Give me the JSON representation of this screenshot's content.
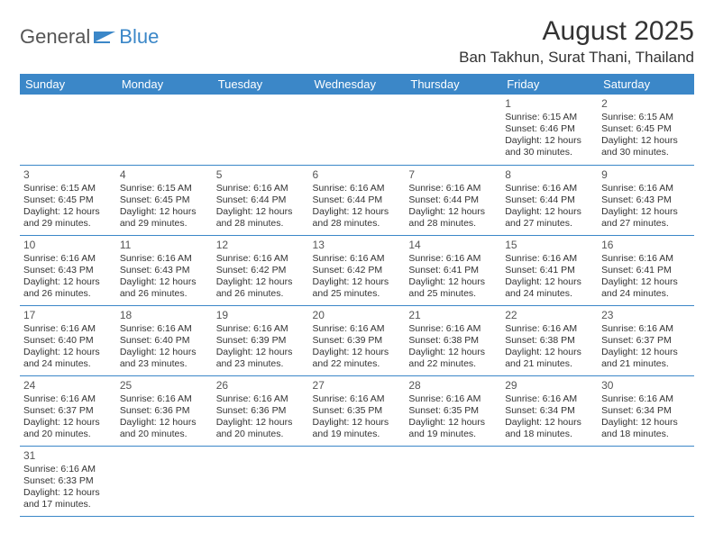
{
  "brand": {
    "part1": "General",
    "part2": "Blue"
  },
  "title": "August 2025",
  "location": "Ban Takhun, Surat Thani, Thailand",
  "colors": {
    "header_bg": "#3b87c8",
    "header_fg": "#ffffff",
    "border": "#3b87c8",
    "text": "#333333",
    "background": "#ffffff"
  },
  "weekdays": [
    "Sunday",
    "Monday",
    "Tuesday",
    "Wednesday",
    "Thursday",
    "Friday",
    "Saturday"
  ],
  "weeks": [
    [
      null,
      null,
      null,
      null,
      null,
      {
        "d": "1",
        "sunrise": "6:15 AM",
        "sunset": "6:46 PM",
        "daylight": "12 hours and 30 minutes."
      },
      {
        "d": "2",
        "sunrise": "6:15 AM",
        "sunset": "6:45 PM",
        "daylight": "12 hours and 30 minutes."
      }
    ],
    [
      {
        "d": "3",
        "sunrise": "6:15 AM",
        "sunset": "6:45 PM",
        "daylight": "12 hours and 29 minutes."
      },
      {
        "d": "4",
        "sunrise": "6:15 AM",
        "sunset": "6:45 PM",
        "daylight": "12 hours and 29 minutes."
      },
      {
        "d": "5",
        "sunrise": "6:16 AM",
        "sunset": "6:44 PM",
        "daylight": "12 hours and 28 minutes."
      },
      {
        "d": "6",
        "sunrise": "6:16 AM",
        "sunset": "6:44 PM",
        "daylight": "12 hours and 28 minutes."
      },
      {
        "d": "7",
        "sunrise": "6:16 AM",
        "sunset": "6:44 PM",
        "daylight": "12 hours and 28 minutes."
      },
      {
        "d": "8",
        "sunrise": "6:16 AM",
        "sunset": "6:44 PM",
        "daylight": "12 hours and 27 minutes."
      },
      {
        "d": "9",
        "sunrise": "6:16 AM",
        "sunset": "6:43 PM",
        "daylight": "12 hours and 27 minutes."
      }
    ],
    [
      {
        "d": "10",
        "sunrise": "6:16 AM",
        "sunset": "6:43 PM",
        "daylight": "12 hours and 26 minutes."
      },
      {
        "d": "11",
        "sunrise": "6:16 AM",
        "sunset": "6:43 PM",
        "daylight": "12 hours and 26 minutes."
      },
      {
        "d": "12",
        "sunrise": "6:16 AM",
        "sunset": "6:42 PM",
        "daylight": "12 hours and 26 minutes."
      },
      {
        "d": "13",
        "sunrise": "6:16 AM",
        "sunset": "6:42 PM",
        "daylight": "12 hours and 25 minutes."
      },
      {
        "d": "14",
        "sunrise": "6:16 AM",
        "sunset": "6:41 PM",
        "daylight": "12 hours and 25 minutes."
      },
      {
        "d": "15",
        "sunrise": "6:16 AM",
        "sunset": "6:41 PM",
        "daylight": "12 hours and 24 minutes."
      },
      {
        "d": "16",
        "sunrise": "6:16 AM",
        "sunset": "6:41 PM",
        "daylight": "12 hours and 24 minutes."
      }
    ],
    [
      {
        "d": "17",
        "sunrise": "6:16 AM",
        "sunset": "6:40 PM",
        "daylight": "12 hours and 24 minutes."
      },
      {
        "d": "18",
        "sunrise": "6:16 AM",
        "sunset": "6:40 PM",
        "daylight": "12 hours and 23 minutes."
      },
      {
        "d": "19",
        "sunrise": "6:16 AM",
        "sunset": "6:39 PM",
        "daylight": "12 hours and 23 minutes."
      },
      {
        "d": "20",
        "sunrise": "6:16 AM",
        "sunset": "6:39 PM",
        "daylight": "12 hours and 22 minutes."
      },
      {
        "d": "21",
        "sunrise": "6:16 AM",
        "sunset": "6:38 PM",
        "daylight": "12 hours and 22 minutes."
      },
      {
        "d": "22",
        "sunrise": "6:16 AM",
        "sunset": "6:38 PM",
        "daylight": "12 hours and 21 minutes."
      },
      {
        "d": "23",
        "sunrise": "6:16 AM",
        "sunset": "6:37 PM",
        "daylight": "12 hours and 21 minutes."
      }
    ],
    [
      {
        "d": "24",
        "sunrise": "6:16 AM",
        "sunset": "6:37 PM",
        "daylight": "12 hours and 20 minutes."
      },
      {
        "d": "25",
        "sunrise": "6:16 AM",
        "sunset": "6:36 PM",
        "daylight": "12 hours and 20 minutes."
      },
      {
        "d": "26",
        "sunrise": "6:16 AM",
        "sunset": "6:36 PM",
        "daylight": "12 hours and 20 minutes."
      },
      {
        "d": "27",
        "sunrise": "6:16 AM",
        "sunset": "6:35 PM",
        "daylight": "12 hours and 19 minutes."
      },
      {
        "d": "28",
        "sunrise": "6:16 AM",
        "sunset": "6:35 PM",
        "daylight": "12 hours and 19 minutes."
      },
      {
        "d": "29",
        "sunrise": "6:16 AM",
        "sunset": "6:34 PM",
        "daylight": "12 hours and 18 minutes."
      },
      {
        "d": "30",
        "sunrise": "6:16 AM",
        "sunset": "6:34 PM",
        "daylight": "12 hours and 18 minutes."
      }
    ],
    [
      {
        "d": "31",
        "sunrise": "6:16 AM",
        "sunset": "6:33 PM",
        "daylight": "12 hours and 17 minutes."
      },
      null,
      null,
      null,
      null,
      null,
      null
    ]
  ],
  "labels": {
    "sunrise_prefix": "Sunrise: ",
    "sunset_prefix": "Sunset: ",
    "daylight_prefix": "Daylight: "
  }
}
